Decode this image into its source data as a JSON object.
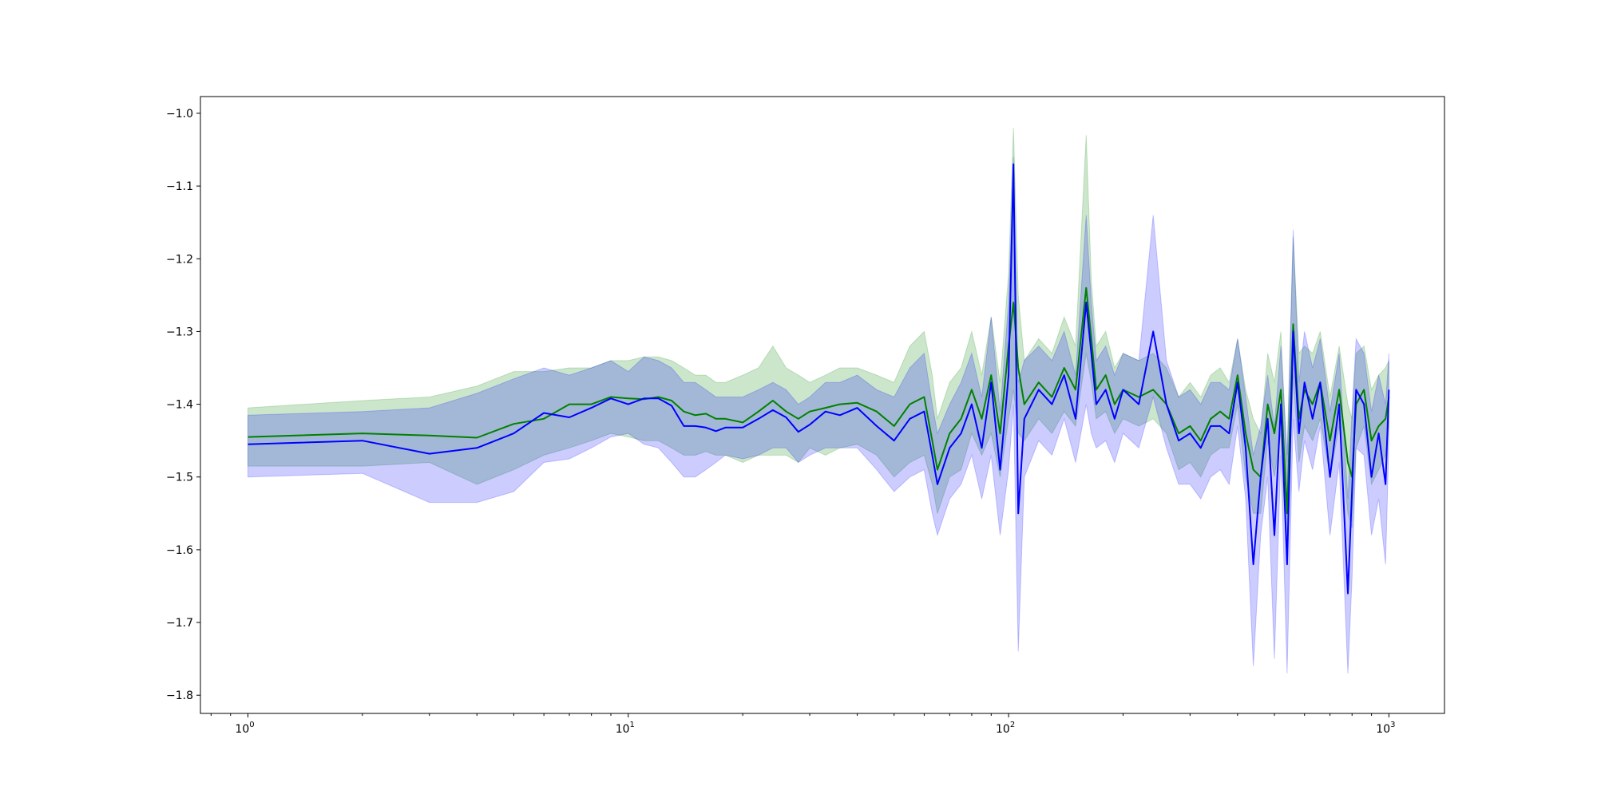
{
  "chart_data": {
    "type": "line",
    "title": "",
    "xlabel": "",
    "ylabel": "",
    "xscale": "log",
    "xlim": [
      0.75,
      1400
    ],
    "ylim": [
      -1.825,
      -0.977
    ],
    "grid": false,
    "legend": "none",
    "x_ticks": [
      {
        "value": 1,
        "base": "10",
        "exp": "0"
      },
      {
        "value": 10,
        "base": "10",
        "exp": "1"
      },
      {
        "value": 100,
        "base": "10",
        "exp": "2"
      },
      {
        "value": 1000,
        "base": "10",
        "exp": "3"
      }
    ],
    "y_ticks": [
      {
        "value": -1.0,
        "label": "−1.0"
      },
      {
        "value": -1.1,
        "label": "−1.1"
      },
      {
        "value": -1.2,
        "label": "−1.2"
      },
      {
        "value": -1.3,
        "label": "−1.3"
      },
      {
        "value": -1.4,
        "label": "−1.4"
      },
      {
        "value": -1.5,
        "label": "−1.5"
      },
      {
        "value": -1.6,
        "label": "−1.6"
      },
      {
        "value": -1.7,
        "label": "−1.7"
      },
      {
        "value": -1.8,
        "label": "−1.8"
      }
    ],
    "series": [
      {
        "color": "#008000",
        "band_color": "#008000",
        "band_opacity": 0.2,
        "x": [
          1,
          2,
          3,
          4,
          5,
          6,
          7,
          8,
          9,
          10,
          11,
          12,
          13,
          14,
          15,
          16,
          17,
          18,
          20,
          22,
          24,
          26,
          28,
          30,
          33,
          36,
          40,
          45,
          50,
          55,
          60,
          63,
          65,
          70,
          75,
          80,
          85,
          90,
          95,
          100,
          103,
          106,
          110,
          120,
          130,
          140,
          150,
          160,
          165,
          170,
          180,
          190,
          200,
          220,
          240,
          260,
          280,
          300,
          320,
          340,
          360,
          380,
          400,
          420,
          440,
          460,
          480,
          500,
          520,
          540,
          560,
          580,
          600,
          630,
          660,
          700,
          740,
          780,
          800,
          820,
          860,
          900,
          940,
          980,
          1000
        ],
        "y": [
          -1.445,
          -1.44,
          -1.443,
          -1.446,
          -1.427,
          -1.42,
          -1.4,
          -1.4,
          -1.39,
          -1.392,
          -1.393,
          -1.39,
          -1.395,
          -1.41,
          -1.415,
          -1.413,
          -1.42,
          -1.42,
          -1.425,
          -1.41,
          -1.395,
          -1.41,
          -1.42,
          -1.41,
          -1.405,
          -1.4,
          -1.398,
          -1.41,
          -1.43,
          -1.4,
          -1.39,
          -1.45,
          -1.49,
          -1.44,
          -1.42,
          -1.38,
          -1.42,
          -1.36,
          -1.44,
          -1.32,
          -1.26,
          -1.35,
          -1.4,
          -1.37,
          -1.39,
          -1.35,
          -1.38,
          -1.24,
          -1.31,
          -1.38,
          -1.36,
          -1.4,
          -1.38,
          -1.39,
          -1.38,
          -1.4,
          -1.44,
          -1.43,
          -1.45,
          -1.42,
          -1.41,
          -1.42,
          -1.36,
          -1.44,
          -1.49,
          -1.5,
          -1.4,
          -1.44,
          -1.38,
          -1.55,
          -1.29,
          -1.42,
          -1.38,
          -1.4,
          -1.37,
          -1.45,
          -1.38,
          -1.48,
          -1.5,
          -1.4,
          -1.38,
          -1.45,
          -1.43,
          -1.42,
          -1.39
        ],
        "lower": [
          -1.485,
          -1.485,
          -1.48,
          -1.51,
          -1.49,
          -1.47,
          -1.46,
          -1.45,
          -1.44,
          -1.445,
          -1.45,
          -1.45,
          -1.46,
          -1.47,
          -1.47,
          -1.465,
          -1.47,
          -1.47,
          -1.48,
          -1.47,
          -1.47,
          -1.47,
          -1.48,
          -1.46,
          -1.47,
          -1.46,
          -1.455,
          -1.47,
          -1.5,
          -1.48,
          -1.47,
          -1.51,
          -1.55,
          -1.5,
          -1.49,
          -1.44,
          -1.47,
          -1.44,
          -1.5,
          -1.42,
          -1.38,
          -1.44,
          -1.45,
          -1.42,
          -1.44,
          -1.41,
          -1.43,
          -1.33,
          -1.37,
          -1.42,
          -1.41,
          -1.44,
          -1.42,
          -1.43,
          -1.42,
          -1.44,
          -1.49,
          -1.48,
          -1.5,
          -1.47,
          -1.46,
          -1.46,
          -1.4,
          -1.5,
          -1.55,
          -1.55,
          -1.45,
          -1.5,
          -1.44,
          -1.62,
          -1.36,
          -1.48,
          -1.43,
          -1.45,
          -1.42,
          -1.5,
          -1.43,
          -1.55,
          -1.57,
          -1.46,
          -1.43,
          -1.51,
          -1.49,
          -1.47,
          -1.43
        ],
        "upper": [
          -1.405,
          -1.395,
          -1.39,
          -1.375,
          -1.355,
          -1.355,
          -1.35,
          -1.35,
          -1.34,
          -1.34,
          -1.335,
          -1.335,
          -1.34,
          -1.35,
          -1.36,
          -1.36,
          -1.37,
          -1.37,
          -1.36,
          -1.35,
          -1.32,
          -1.35,
          -1.36,
          -1.37,
          -1.36,
          -1.35,
          -1.35,
          -1.36,
          -1.37,
          -1.32,
          -1.3,
          -1.36,
          -1.42,
          -1.37,
          -1.35,
          -1.3,
          -1.36,
          -1.28,
          -1.37,
          -1.22,
          -1.02,
          -1.25,
          -1.34,
          -1.31,
          -1.33,
          -1.28,
          -1.32,
          -1.03,
          -1.23,
          -1.32,
          -1.3,
          -1.35,
          -1.33,
          -1.34,
          -1.33,
          -1.35,
          -1.39,
          -1.37,
          -1.39,
          -1.36,
          -1.35,
          -1.37,
          -1.31,
          -1.38,
          -1.42,
          -1.44,
          -1.33,
          -1.37,
          -1.3,
          -1.48,
          -1.17,
          -1.33,
          -1.32,
          -1.33,
          -1.3,
          -1.39,
          -1.32,
          -1.4,
          -1.42,
          -1.33,
          -1.32,
          -1.38,
          -1.36,
          -1.35,
          -1.34
        ]
      },
      {
        "color": "#0000ff",
        "band_color": "#0000ff",
        "band_opacity": 0.2,
        "x": [
          1,
          2,
          3,
          4,
          5,
          6,
          7,
          8,
          9,
          10,
          11,
          12,
          13,
          14,
          15,
          16,
          17,
          18,
          20,
          22,
          24,
          26,
          28,
          30,
          33,
          36,
          40,
          45,
          50,
          55,
          60,
          63,
          65,
          70,
          75,
          80,
          85,
          90,
          95,
          100,
          103,
          106,
          110,
          120,
          130,
          140,
          150,
          160,
          165,
          170,
          180,
          190,
          200,
          220,
          240,
          260,
          280,
          300,
          320,
          340,
          360,
          380,
          400,
          420,
          440,
          460,
          480,
          500,
          520,
          540,
          560,
          580,
          600,
          630,
          660,
          700,
          740,
          780,
          800,
          820,
          860,
          900,
          940,
          980,
          1000
        ],
        "y": [
          -1.455,
          -1.45,
          -1.468,
          -1.46,
          -1.44,
          -1.412,
          -1.418,
          -1.405,
          -1.392,
          -1.4,
          -1.392,
          -1.392,
          -1.402,
          -1.43,
          -1.43,
          -1.432,
          -1.437,
          -1.432,
          -1.432,
          -1.42,
          -1.408,
          -1.418,
          -1.438,
          -1.428,
          -1.41,
          -1.415,
          -1.405,
          -1.43,
          -1.45,
          -1.42,
          -1.41,
          -1.47,
          -1.51,
          -1.46,
          -1.44,
          -1.4,
          -1.46,
          -1.37,
          -1.49,
          -1.36,
          -1.07,
          -1.55,
          -1.42,
          -1.38,
          -1.4,
          -1.36,
          -1.42,
          -1.26,
          -1.33,
          -1.4,
          -1.38,
          -1.42,
          -1.38,
          -1.4,
          -1.3,
          -1.4,
          -1.45,
          -1.44,
          -1.46,
          -1.43,
          -1.43,
          -1.44,
          -1.37,
          -1.46,
          -1.62,
          -1.5,
          -1.42,
          -1.58,
          -1.4,
          -1.62,
          -1.3,
          -1.44,
          -1.37,
          -1.42,
          -1.37,
          -1.5,
          -1.4,
          -1.66,
          -1.52,
          -1.38,
          -1.4,
          -1.5,
          -1.44,
          -1.51,
          -1.38
        ],
        "lower": [
          -1.5,
          -1.495,
          -1.535,
          -1.535,
          -1.52,
          -1.48,
          -1.475,
          -1.46,
          -1.445,
          -1.44,
          -1.455,
          -1.46,
          -1.48,
          -1.5,
          -1.5,
          -1.49,
          -1.48,
          -1.47,
          -1.475,
          -1.47,
          -1.46,
          -1.46,
          -1.48,
          -1.47,
          -1.46,
          -1.46,
          -1.46,
          -1.49,
          -1.52,
          -1.5,
          -1.49,
          -1.55,
          -1.58,
          -1.53,
          -1.51,
          -1.47,
          -1.53,
          -1.47,
          -1.58,
          -1.49,
          -1.4,
          -1.74,
          -1.5,
          -1.45,
          -1.47,
          -1.42,
          -1.48,
          -1.4,
          -1.44,
          -1.46,
          -1.45,
          -1.48,
          -1.44,
          -1.46,
          -1.39,
          -1.46,
          -1.51,
          -1.51,
          -1.53,
          -1.5,
          -1.49,
          -1.51,
          -1.43,
          -1.53,
          -1.76,
          -1.58,
          -1.5,
          -1.75,
          -1.47,
          -1.77,
          -1.42,
          -1.52,
          -1.45,
          -1.49,
          -1.43,
          -1.58,
          -1.48,
          -1.77,
          -1.64,
          -1.46,
          -1.47,
          -1.58,
          -1.53,
          -1.62,
          -1.45
        ],
        "upper": [
          -1.415,
          -1.41,
          -1.405,
          -1.385,
          -1.365,
          -1.35,
          -1.36,
          -1.35,
          -1.34,
          -1.355,
          -1.335,
          -1.34,
          -1.35,
          -1.37,
          -1.37,
          -1.38,
          -1.39,
          -1.39,
          -1.39,
          -1.38,
          -1.37,
          -1.38,
          -1.4,
          -1.39,
          -1.37,
          -1.37,
          -1.36,
          -1.38,
          -1.39,
          -1.35,
          -1.33,
          -1.4,
          -1.44,
          -1.4,
          -1.37,
          -1.33,
          -1.39,
          -1.28,
          -1.41,
          -1.26,
          -1.06,
          -1.37,
          -1.34,
          -1.32,
          -1.34,
          -1.3,
          -1.36,
          -1.14,
          -1.26,
          -1.34,
          -1.32,
          -1.36,
          -1.33,
          -1.34,
          -1.14,
          -1.34,
          -1.39,
          -1.38,
          -1.4,
          -1.37,
          -1.37,
          -1.38,
          -1.31,
          -1.39,
          -1.47,
          -1.43,
          -1.36,
          -1.43,
          -1.32,
          -1.47,
          -1.16,
          -1.37,
          -1.3,
          -1.35,
          -1.31,
          -1.41,
          -1.33,
          -1.53,
          -1.41,
          -1.31,
          -1.33,
          -1.41,
          -1.36,
          -1.4,
          -1.33
        ]
      }
    ]
  }
}
